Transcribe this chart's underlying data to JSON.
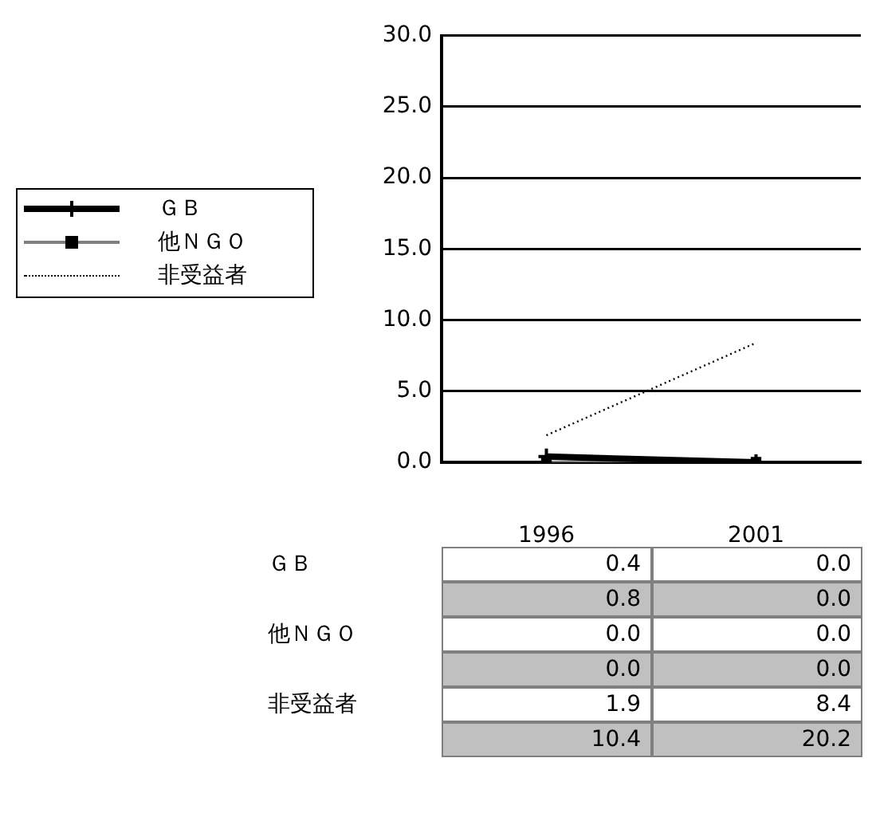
{
  "chart_data": {
    "type": "line",
    "categories": [
      "1996",
      "2001"
    ],
    "series": [
      {
        "name": "ＧＢ",
        "color": "#000000",
        "values": [
          0.4,
          0.0
        ],
        "value_labels": [
          "0.4",
          "0.0"
        ],
        "marker": "cross",
        "line_style": "solid"
      },
      {
        "name": "他ＮＧＯ",
        "color": "#808080",
        "values": [
          0.0,
          0.0
        ],
        "value_labels": [
          "0.0",
          "0.0"
        ],
        "marker": "square",
        "line_style": "solid"
      },
      {
        "name": "非受益者",
        "color": "#000000",
        "values": [
          1.9,
          8.4
        ],
        "value_labels": [
          "1.9",
          "8.4"
        ],
        "marker": "none",
        "line_style": "dotted"
      }
    ],
    "annotations": [
      "0.8",
      "0.0",
      "0.0",
      "0.0",
      "10.4",
      "20.2"
    ],
    "ylim": [
      0,
      30
    ],
    "yticks": [
      {
        "value": 0,
        "label": "0.0"
      },
      {
        "value": 5,
        "label": "5.0"
      },
      {
        "value": 10,
        "label": "10.0"
      },
      {
        "value": 15,
        "label": "15.0"
      },
      {
        "value": 20,
        "label": "20.0"
      },
      {
        "value": 25,
        "label": "25.0"
      },
      {
        "value": 30,
        "label": "30.0"
      }
    ],
    "grid": "y",
    "legend": "left"
  }
}
